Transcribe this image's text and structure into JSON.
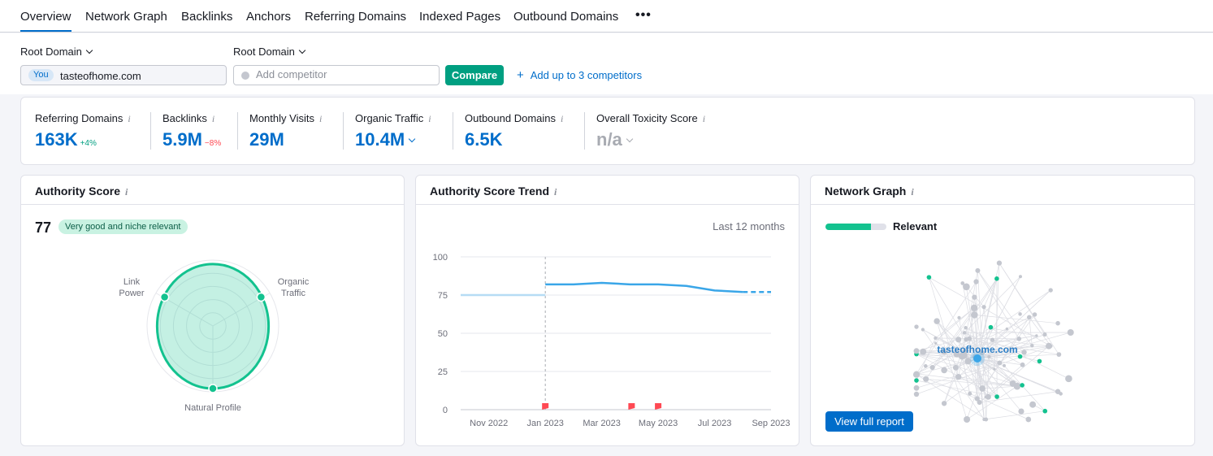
{
  "tabs": [
    {
      "label": "Overview"
    },
    {
      "label": "Network Graph"
    },
    {
      "label": "Backlinks"
    },
    {
      "label": "Anchors"
    },
    {
      "label": "Referring Domains"
    },
    {
      "label": "Indexed Pages"
    },
    {
      "label": "Outbound Domains"
    }
  ],
  "tab_more": "•••",
  "controls": {
    "root_domain_label_1": "Root Domain",
    "root_domain_label_2": "Root Domain",
    "you_badge": "You",
    "you_domain": "tasteofhome.com",
    "competitor_placeholder": "Add competitor",
    "compare_label": "Compare",
    "add_competitors_label": "Add up to 3 competitors"
  },
  "metrics": [
    {
      "label": "Referring Domains",
      "value": "163K",
      "change": "+4%"
    },
    {
      "label": "Backlinks",
      "value": "5.9M",
      "change": "−8%"
    },
    {
      "label": "Monthly Visits",
      "value": "29M"
    },
    {
      "label": "Organic Traffic",
      "value": "10.4M"
    },
    {
      "label": "Outbound Domains",
      "value": "6.5K"
    },
    {
      "label": "Overall Toxicity Score",
      "value": "n/a"
    }
  ],
  "authority_score": {
    "title": "Authority Score",
    "score": "77",
    "badge": "Very good and niche relevant",
    "axis_link_power_1": "Link",
    "axis_link_power_2": "Power",
    "axis_organic_1": "Organic",
    "axis_organic_2": "Traffic",
    "axis_natural": "Natural Profile",
    "levels": {
      "link_power": 0.85,
      "organic_traffic": 0.85,
      "natural_profile": 0.95
    }
  },
  "trend": {
    "title": "Authority Score Trend",
    "period": "Last 12 months"
  },
  "chart_data": {
    "type": "line",
    "title": "Authority Score Trend",
    "x": [
      "Oct 2022",
      "Nov 2022",
      "Dec 2022",
      "Jan 2023",
      "Feb 2023",
      "Mar 2023",
      "Apr 2023",
      "May 2023",
      "Jun 2023",
      "Jul 2023",
      "Aug 2023",
      "Sep 2023"
    ],
    "x_tick_labels": [
      "Nov 2022",
      "Jan 2023",
      "Mar 2023",
      "May 2023",
      "Jul 2023",
      "Sep 2023"
    ],
    "y_ticks": [
      0,
      25,
      50,
      75,
      100
    ],
    "ylim": [
      0,
      100
    ],
    "series": [
      {
        "values": [
          75,
          75,
          75,
          75,
          82,
          83,
          82,
          82,
          81,
          78,
          77,
          77
        ]
      }
    ],
    "markers_x": [
      "Jan 2023",
      "Apr 2023",
      "May 2023"
    ],
    "grid": true,
    "accent": "#3aa6e8"
  },
  "network": {
    "title": "Network Graph",
    "relevant_label": "Relevant",
    "center_domain": "tasteofhome.com",
    "view_full_report": "View full report",
    "relevance_level": 0.75
  },
  "colors": {
    "accent": "#006dca",
    "green": "#009f81",
    "red": "#ff4953",
    "radar": "#13c28f"
  }
}
